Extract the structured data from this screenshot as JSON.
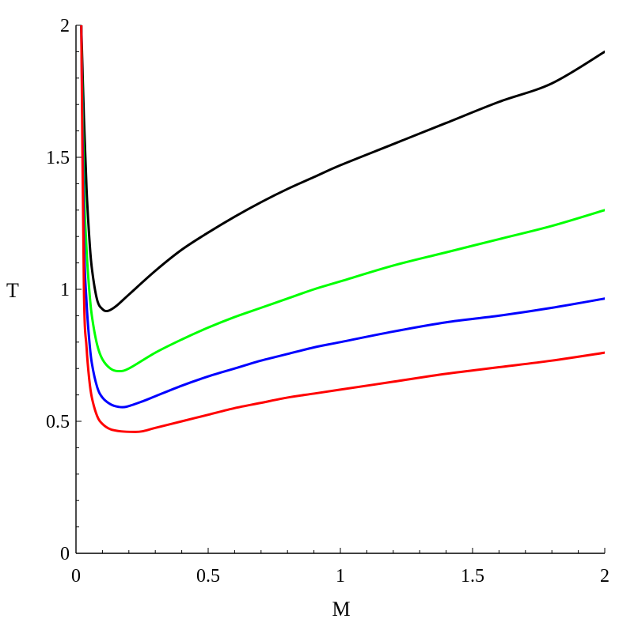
{
  "chart_data": {
    "type": "line",
    "title": "",
    "xlabel": "M",
    "ylabel": "T",
    "xlim": [
      0,
      2
    ],
    "ylim": [
      0,
      2
    ],
    "grid": false,
    "legend": "none",
    "x_ticks": [
      0,
      0.5,
      1,
      1.5,
      2
    ],
    "x_tick_labels": [
      "0",
      "0.5",
      "1",
      "1.5",
      "2"
    ],
    "y_ticks": [
      0,
      0.5,
      1,
      1.5,
      2
    ],
    "y_tick_labels": [
      "0",
      "0.5",
      "1",
      "1.5",
      "2"
    ],
    "series": [
      {
        "color": "#000000",
        "points": [
          [
            0.02,
            2.0
          ],
          [
            0.03,
            1.65
          ],
          [
            0.04,
            1.38
          ],
          [
            0.05,
            1.2
          ],
          [
            0.06,
            1.08
          ],
          [
            0.08,
            0.96
          ],
          [
            0.1,
            0.925
          ],
          [
            0.12,
            0.918
          ],
          [
            0.15,
            0.935
          ],
          [
            0.2,
            0.98
          ],
          [
            0.3,
            1.07
          ],
          [
            0.4,
            1.15
          ],
          [
            0.5,
            1.215
          ],
          [
            0.6,
            1.275
          ],
          [
            0.7,
            1.33
          ],
          [
            0.8,
            1.38
          ],
          [
            0.9,
            1.425
          ],
          [
            1.0,
            1.47
          ],
          [
            1.2,
            1.55
          ],
          [
            1.4,
            1.63
          ],
          [
            1.6,
            1.71
          ],
          [
            1.8,
            1.78
          ],
          [
            2.0,
            1.9
          ]
        ]
      },
      {
        "color": "#00ff00",
        "points": [
          [
            0.02,
            2.0
          ],
          [
            0.03,
            1.4
          ],
          [
            0.04,
            1.15
          ],
          [
            0.05,
            1.0
          ],
          [
            0.06,
            0.9
          ],
          [
            0.08,
            0.79
          ],
          [
            0.1,
            0.735
          ],
          [
            0.13,
            0.7
          ],
          [
            0.16,
            0.69
          ],
          [
            0.2,
            0.7
          ],
          [
            0.3,
            0.76
          ],
          [
            0.4,
            0.81
          ],
          [
            0.5,
            0.855
          ],
          [
            0.6,
            0.895
          ],
          [
            0.7,
            0.93
          ],
          [
            0.8,
            0.965
          ],
          [
            0.9,
            1.0
          ],
          [
            1.0,
            1.03
          ],
          [
            1.2,
            1.09
          ],
          [
            1.4,
            1.14
          ],
          [
            1.6,
            1.19
          ],
          [
            1.8,
            1.24
          ],
          [
            2.0,
            1.3
          ]
        ]
      },
      {
        "color": "#0000ff",
        "points": [
          [
            0.02,
            2.0
          ],
          [
            0.03,
            1.2
          ],
          [
            0.04,
            0.95
          ],
          [
            0.05,
            0.81
          ],
          [
            0.06,
            0.72
          ],
          [
            0.08,
            0.63
          ],
          [
            0.1,
            0.59
          ],
          [
            0.13,
            0.565
          ],
          [
            0.16,
            0.555
          ],
          [
            0.19,
            0.555
          ],
          [
            0.25,
            0.575
          ],
          [
            0.3,
            0.595
          ],
          [
            0.4,
            0.635
          ],
          [
            0.5,
            0.67
          ],
          [
            0.6,
            0.7
          ],
          [
            0.7,
            0.73
          ],
          [
            0.8,
            0.755
          ],
          [
            0.9,
            0.78
          ],
          [
            1.0,
            0.8
          ],
          [
            1.2,
            0.84
          ],
          [
            1.4,
            0.875
          ],
          [
            1.6,
            0.9
          ],
          [
            1.8,
            0.93
          ],
          [
            2.0,
            0.965
          ]
        ]
      },
      {
        "color": "#ff0000",
        "points": [
          [
            0.02,
            2.0
          ],
          [
            0.03,
            1.0
          ],
          [
            0.04,
            0.78
          ],
          [
            0.05,
            0.66
          ],
          [
            0.06,
            0.59
          ],
          [
            0.08,
            0.52
          ],
          [
            0.1,
            0.49
          ],
          [
            0.13,
            0.47
          ],
          [
            0.17,
            0.462
          ],
          [
            0.22,
            0.46
          ],
          [
            0.25,
            0.462
          ],
          [
            0.3,
            0.475
          ],
          [
            0.4,
            0.5
          ],
          [
            0.5,
            0.525
          ],
          [
            0.6,
            0.55
          ],
          [
            0.7,
            0.57
          ],
          [
            0.8,
            0.59
          ],
          [
            0.9,
            0.605
          ],
          [
            1.0,
            0.62
          ],
          [
            1.2,
            0.65
          ],
          [
            1.4,
            0.68
          ],
          [
            1.6,
            0.705
          ],
          [
            1.8,
            0.73
          ],
          [
            2.0,
            0.76
          ]
        ]
      }
    ]
  }
}
